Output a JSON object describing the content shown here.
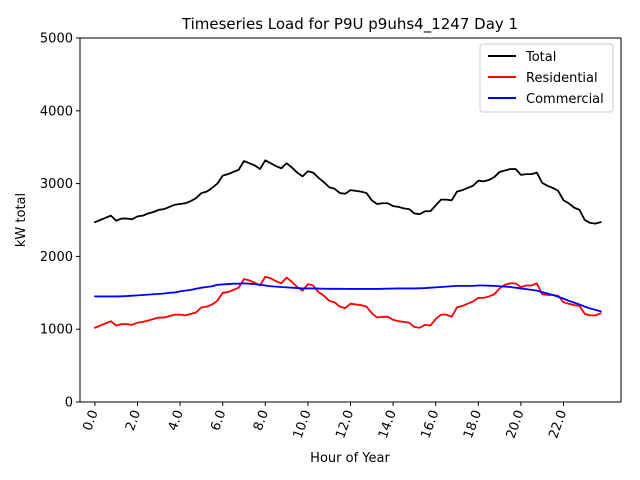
{
  "chart_data": {
    "type": "line",
    "title": "Timeseries Load for P9U p9uhs4_1247  Day 1",
    "xlabel": "Hour of Year",
    "ylabel": "kW total",
    "xlim": [
      -0.7,
      24.7
    ],
    "ylim": [
      0,
      5000
    ],
    "yticks": [
      0,
      1000,
      2000,
      3000,
      4000,
      5000
    ],
    "xticks": [
      0,
      2,
      4,
      6,
      8,
      10,
      12,
      14,
      16,
      18,
      20,
      22
    ],
    "xtick_labels": [
      "0.0",
      "2.0",
      "4.0",
      "6.0",
      "8.0",
      "10.0",
      "12.0",
      "14.0",
      "16.0",
      "18.0",
      "20.0",
      "22.0"
    ],
    "legend_position": "top-right",
    "x": [
      0.0,
      0.25,
      0.5,
      0.75,
      1.0,
      1.25,
      1.5,
      1.75,
      2.0,
      2.25,
      2.5,
      2.75,
      3.0,
      3.25,
      3.5,
      3.75,
      4.0,
      4.25,
      4.5,
      4.75,
      5.0,
      5.25,
      5.5,
      5.75,
      6.0,
      6.25,
      6.5,
      6.75,
      7.0,
      7.25,
      7.5,
      7.75,
      8.0,
      8.25,
      8.5,
      8.75,
      9.0,
      9.25,
      9.5,
      9.75,
      10.0,
      10.25,
      10.5,
      10.75,
      11.0,
      11.25,
      11.5,
      11.75,
      12.0,
      12.25,
      12.5,
      12.75,
      13.0,
      13.25,
      13.5,
      13.75,
      14.0,
      14.25,
      14.5,
      14.75,
      15.0,
      15.25,
      15.5,
      15.75,
      16.0,
      16.25,
      16.5,
      16.75,
      17.0,
      17.25,
      17.5,
      17.75,
      18.0,
      18.25,
      18.5,
      18.75,
      19.0,
      19.25,
      19.5,
      19.75,
      20.0,
      20.25,
      20.5,
      20.75,
      21.0,
      21.25,
      21.5,
      21.75,
      22.0,
      22.25,
      22.5,
      22.75,
      23.0,
      23.25,
      23.5,
      23.75
    ],
    "series": [
      {
        "name": "Total",
        "color": "#000000",
        "values": [
          2470,
          2500,
          2530,
          2560,
          2490,
          2520,
          2520,
          2510,
          2550,
          2560,
          2590,
          2610,
          2640,
          2650,
          2680,
          2710,
          2720,
          2730,
          2760,
          2800,
          2870,
          2890,
          2940,
          3000,
          3110,
          3130,
          3160,
          3190,
          3310,
          3280,
          3250,
          3200,
          3320,
          3280,
          3240,
          3210,
          3280,
          3220,
          3150,
          3100,
          3170,
          3150,
          3080,
          3020,
          2950,
          2930,
          2870,
          2860,
          2910,
          2900,
          2890,
          2870,
          2770,
          2720,
          2730,
          2730,
          2690,
          2680,
          2660,
          2650,
          2590,
          2580,
          2620,
          2620,
          2700,
          2780,
          2780,
          2770,
          2890,
          2910,
          2940,
          2970,
          3040,
          3030,
          3050,
          3090,
          3160,
          3180,
          3200,
          3200,
          3120,
          3130,
          3130,
          3150,
          3010,
          2970,
          2940,
          2900,
          2770,
          2730,
          2670,
          2640,
          2500,
          2460,
          2450,
          2470
        ]
      },
      {
        "name": "Residential",
        "color": "#ff0000",
        "values": [
          1020,
          1050,
          1080,
          1110,
          1050,
          1070,
          1070,
          1060,
          1090,
          1100,
          1120,
          1140,
          1160,
          1160,
          1180,
          1200,
          1200,
          1190,
          1210,
          1230,
          1300,
          1310,
          1340,
          1390,
          1500,
          1510,
          1540,
          1570,
          1690,
          1670,
          1640,
          1600,
          1720,
          1700,
          1660,
          1630,
          1710,
          1650,
          1580,
          1530,
          1620,
          1600,
          1510,
          1460,
          1390,
          1370,
          1310,
          1290,
          1350,
          1340,
          1330,
          1310,
          1220,
          1160,
          1170,
          1170,
          1130,
          1110,
          1100,
          1090,
          1030,
          1020,
          1060,
          1050,
          1140,
          1200,
          1200,
          1170,
          1300,
          1320,
          1350,
          1380,
          1430,
          1430,
          1450,
          1480,
          1560,
          1610,
          1630,
          1630,
          1580,
          1600,
          1600,
          1630,
          1480,
          1470,
          1470,
          1460,
          1370,
          1350,
          1330,
          1320,
          1210,
          1190,
          1190,
          1220
        ]
      },
      {
        "name": "Commercial",
        "color": "#0000ff",
        "values": [
          1450,
          1450,
          1450,
          1450,
          1450,
          1452,
          1455,
          1460,
          1465,
          1470,
          1475,
          1480,
          1485,
          1490,
          1500,
          1505,
          1520,
          1530,
          1540,
          1555,
          1570,
          1580,
          1590,
          1610,
          1615,
          1620,
          1625,
          1625,
          1630,
          1625,
          1620,
          1610,
          1600,
          1590,
          1585,
          1580,
          1575,
          1570,
          1565,
          1560,
          1560,
          1560,
          1558,
          1556,
          1555,
          1555,
          1555,
          1554,
          1553,
          1553,
          1553,
          1553,
          1553,
          1553,
          1555,
          1557,
          1558,
          1560,
          1560,
          1560,
          1560,
          1562,
          1565,
          1570,
          1575,
          1580,
          1585,
          1590,
          1595,
          1595,
          1595,
          1595,
          1600,
          1600,
          1598,
          1595,
          1590,
          1585,
          1580,
          1570,
          1560,
          1550,
          1540,
          1530,
          1510,
          1490,
          1470,
          1445,
          1420,
          1390,
          1365,
          1340,
          1310,
          1285,
          1265,
          1245
        ]
      }
    ]
  }
}
